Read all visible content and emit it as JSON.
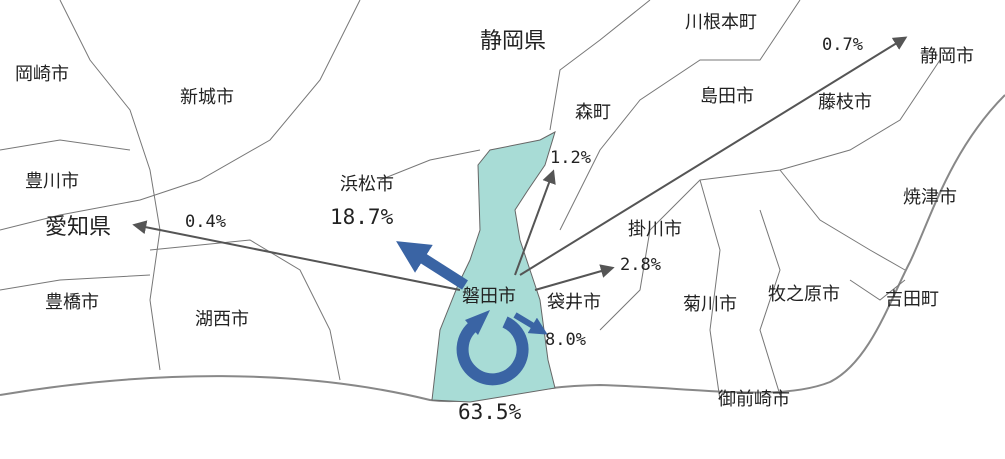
{
  "prefectures": [
    "静岡県",
    "愛知県"
  ],
  "places": [
    "岡崎市",
    "新城市",
    "豊川市",
    "豊橋市",
    "湖西市",
    "浜松市",
    "磐田市",
    "森町",
    "袋井市",
    "掛川市",
    "島田市",
    "川根本町",
    "藤枝市",
    "静岡市",
    "焼津市",
    "吉田町",
    "牧之原市",
    "菊川市",
    "御前崎市"
  ],
  "flows": [
    "63.5%",
    "18.7%",
    "8.0%",
    "2.8%",
    "1.2%",
    "0.7%",
    "0.4%"
  ]
}
